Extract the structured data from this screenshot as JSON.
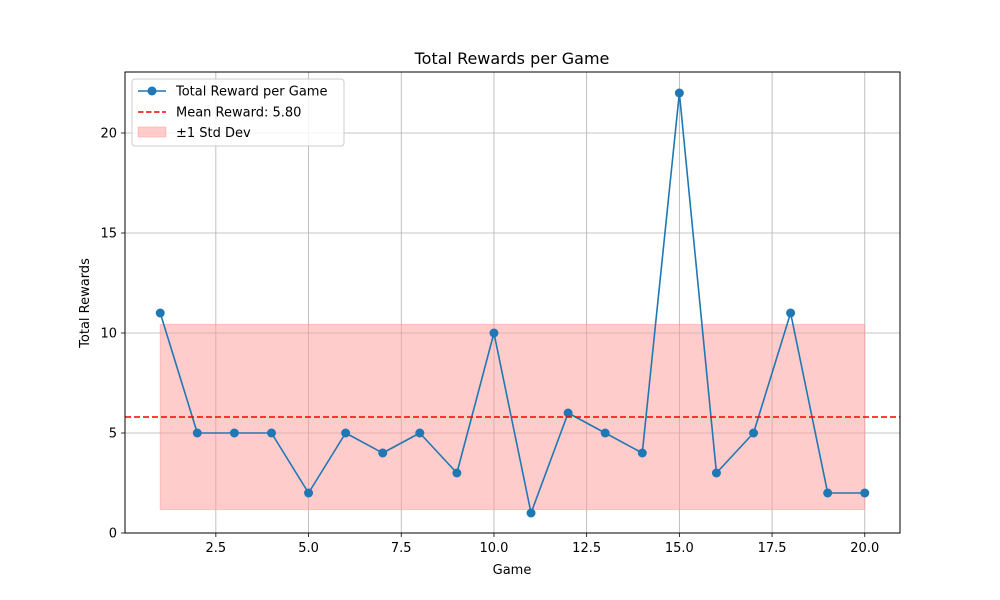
{
  "chart_data": {
    "type": "line",
    "title": "Total Rewards per Game",
    "xlabel": "Game",
    "ylabel": "Total Rewards",
    "xlim": [
      0.05,
      20.95
    ],
    "ylim": [
      0,
      23.05
    ],
    "xticks": [
      2.5,
      5.0,
      7.5,
      10.0,
      12.5,
      15.0,
      17.5,
      20.0
    ],
    "xtick_labels": [
      "2.5",
      "5.0",
      "7.5",
      "10.0",
      "12.5",
      "15.0",
      "17.5",
      "20.0"
    ],
    "yticks": [
      0,
      5,
      10,
      15,
      20
    ],
    "ytick_labels": [
      "0",
      "5",
      "10",
      "15",
      "20"
    ],
    "grid": true,
    "legend_position": "top-left",
    "series": [
      {
        "name": "Total Reward per Game",
        "color": "#1f77b4",
        "x": [
          1,
          2,
          3,
          4,
          5,
          6,
          7,
          8,
          9,
          10,
          11,
          12,
          13,
          14,
          15,
          16,
          17,
          18,
          19,
          20
        ],
        "values": [
          11,
          5,
          5,
          5,
          2,
          5,
          4,
          5,
          3,
          10,
          1,
          6,
          5,
          4,
          22,
          3,
          5,
          11,
          2,
          2
        ]
      }
    ],
    "mean_line": {
      "name": "Mean Reward: 5.80",
      "value": 5.8,
      "color": "#ff0000"
    },
    "std_band": {
      "name": "±1 Std Dev",
      "lower": 1.17,
      "upper": 10.43,
      "x_range": [
        1,
        20
      ],
      "color": "#ff9999"
    }
  }
}
